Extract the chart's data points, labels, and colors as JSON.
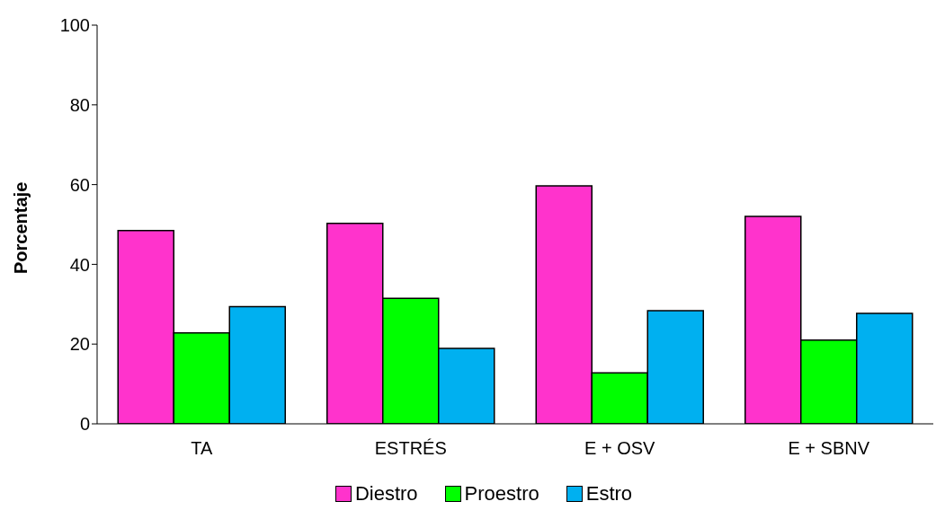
{
  "chart_data": {
    "type": "bar",
    "ylabel": "Porcentaje",
    "categories": [
      "TA",
      "ESTRÉS",
      "E + OSV",
      "E + SBNV"
    ],
    "series": [
      {
        "name": "Diestro",
        "color": "#ff33cc",
        "values": [
          48.5,
          50.3,
          59.7,
          52.0
        ]
      },
      {
        "name": "Proestro",
        "color": "#00ff00",
        "values": [
          22.8,
          31.5,
          12.8,
          21.0
        ]
      },
      {
        "name": "Estro",
        "color": "#00b0f0",
        "values": [
          29.4,
          18.9,
          28.4,
          27.7
        ]
      }
    ],
    "ylim": [
      0,
      100
    ],
    "yticks": [
      0,
      20,
      40,
      60,
      80,
      100
    ],
    "grid": false,
    "legend": "bottom"
  }
}
